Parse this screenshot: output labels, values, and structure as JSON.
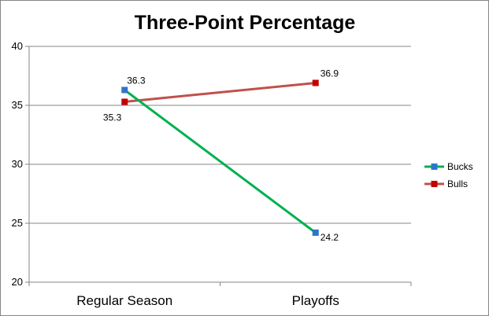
{
  "chart_data": {
    "type": "line",
    "title": "Three-Point Percentage",
    "xlabel": "",
    "ylabel": "",
    "categories": [
      "Regular Season",
      "Playoffs"
    ],
    "ylim": [
      20,
      40
    ],
    "yticks": [
      20,
      25,
      30,
      35,
      40
    ],
    "grid": true,
    "legend_position": "right",
    "series": [
      {
        "name": "Bucks",
        "values": [
          36.3,
          24.2
        ],
        "labels": [
          "36.3",
          "24.2"
        ],
        "line_color": "#00b050",
        "marker_color": "#2e75c8"
      },
      {
        "name": "Bulls",
        "values": [
          35.3,
          36.9
        ],
        "labels": [
          "35.3",
          "36.9"
        ],
        "line_color": "#c0504d",
        "marker_color": "#c00000"
      }
    ]
  }
}
